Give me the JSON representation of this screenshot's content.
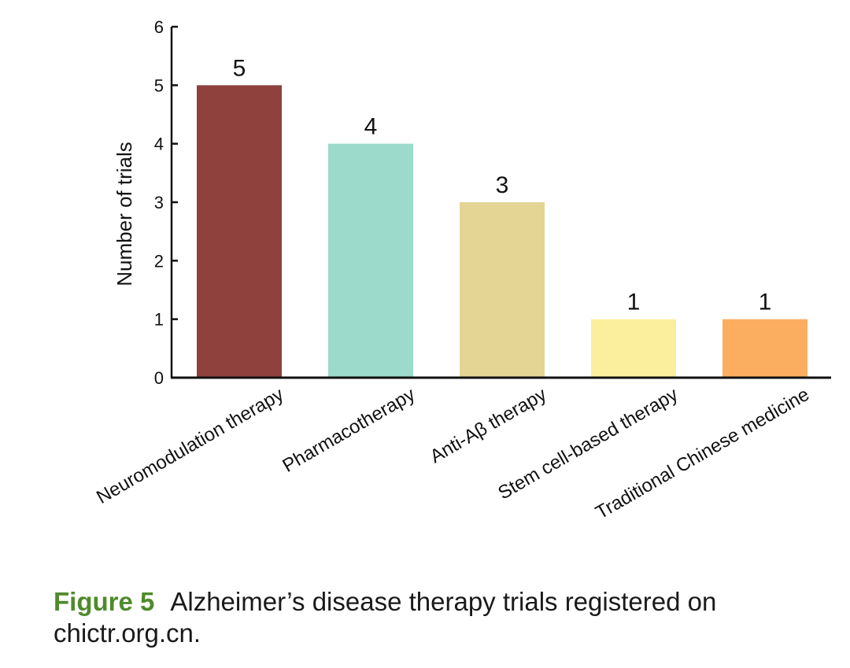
{
  "chart_data": {
    "type": "bar",
    "categories": [
      "Neuromodulation therapy",
      "Pharmacotherapy",
      "Anti-Aβ  therapy",
      "Stem cell-based therapy",
      "Traditional Chinese medicine"
    ],
    "values": [
      5,
      4,
      3,
      1,
      1
    ],
    "data_labels": [
      "5",
      "4",
      "3",
      "1",
      "1"
    ],
    "colors": [
      "#8e413d",
      "#9cdacb",
      "#e5d595",
      "#fbef9d",
      "#fcae60"
    ],
    "ylabel": "Number of trials",
    "ylim": [
      0,
      6
    ],
    "yticks": [
      0,
      1,
      2,
      3,
      4,
      5,
      6
    ],
    "grid": false,
    "legend": "none"
  },
  "caption": {
    "label": "Figure 5",
    "text": "Alzheimer’s disease therapy trials registered on chictr.org.cn."
  }
}
